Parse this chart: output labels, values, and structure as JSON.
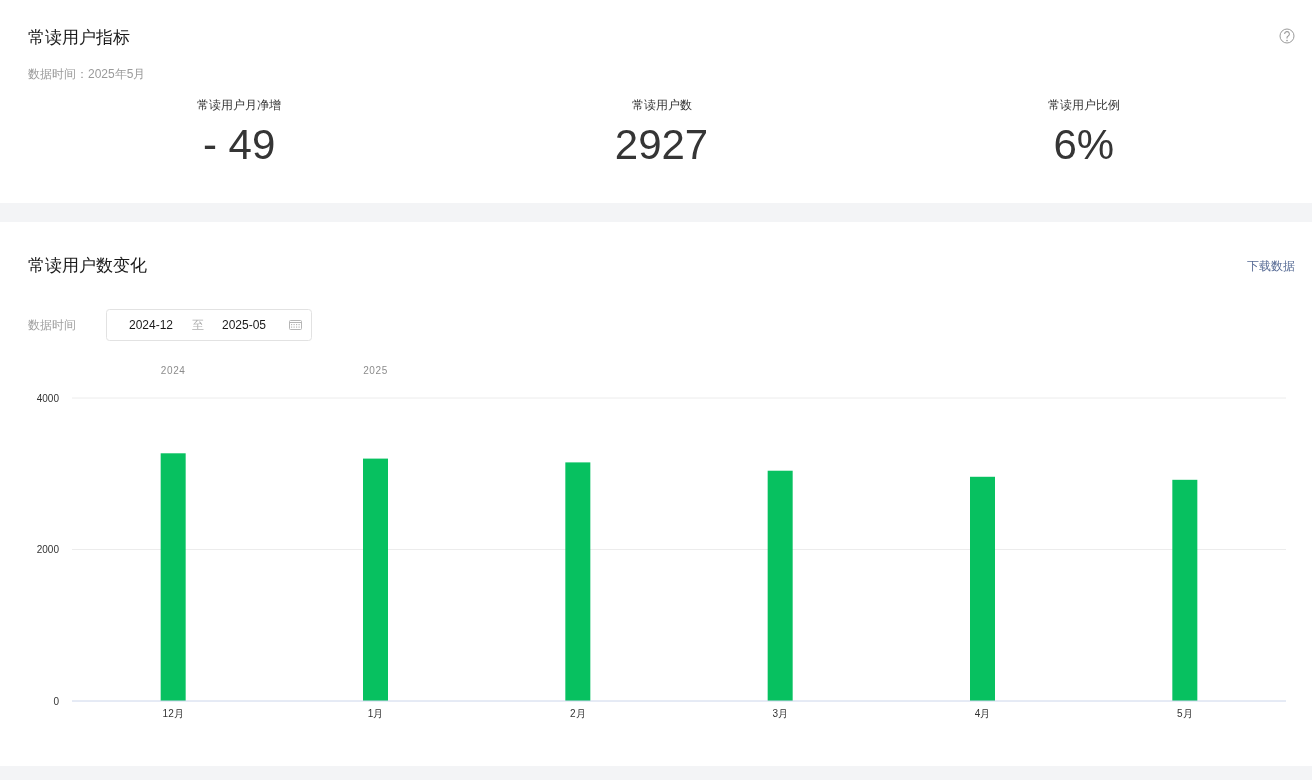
{
  "chart_data": [
    {
      "type": "other",
      "title": "常读用户指标",
      "subtitle": "数据时间：2025年5月",
      "categories": [
        "常读用户月净增",
        "常读用户数",
        "常读用户比例"
      ],
      "values": [
        -49,
        2927,
        6
      ],
      "value_labels": [
        "- 49",
        "2927",
        "6%"
      ]
    },
    {
      "type": "bar",
      "title": "常读用户数变化",
      "categories": [
        "12月",
        "1月",
        "2月",
        "3月",
        "4月",
        "5月"
      ],
      "values": [
        3270,
        3200,
        3150,
        3040,
        2960,
        2920
      ],
      "color": "#07c160",
      "ylim": [
        0,
        4000
      ],
      "yticks": [
        0,
        2000,
        4000
      ],
      "grid": "y",
      "annotations": [
        "下载数据",
        "数据时间",
        "2024-12",
        "至",
        "2025-05",
        "2024",
        "2025"
      ]
    }
  ]
}
